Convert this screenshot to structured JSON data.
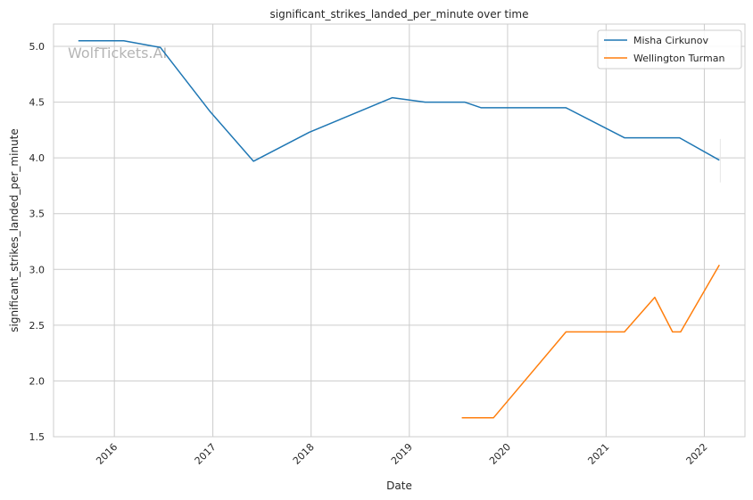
{
  "watermark": "WolfTickets.AI",
  "chart_data": {
    "type": "line",
    "title": "significant_strikes_landed_per_minute over time",
    "xlabel": "Date",
    "ylabel": "significant_strikes_landed_per_minute",
    "x_ticks": [
      "2016",
      "2017",
      "2018",
      "2019",
      "2020",
      "2021",
      "2022"
    ],
    "y_ticks": [
      "1.5",
      "2.0",
      "2.5",
      "3.0",
      "3.5",
      "4.0",
      "4.5",
      "5.0"
    ],
    "xlim": [
      "2015-05-20",
      "2022-06-01"
    ],
    "ylim": [
      1.5,
      5.2
    ],
    "grid": true,
    "legend_position": "top-right",
    "series": [
      {
        "name": "Misha Cirkunov",
        "color": "#1f77b4",
        "points": [
          [
            "2015-08-20",
            5.05
          ],
          [
            "2016-02-05",
            5.05
          ],
          [
            "2016-06-20",
            4.99
          ],
          [
            "2016-12-20",
            4.42
          ],
          [
            "2017-06-01",
            3.97
          ],
          [
            "2017-12-25",
            4.23
          ],
          [
            "2018-10-30",
            4.54
          ],
          [
            "2019-03-01",
            4.5
          ],
          [
            "2019-07-25",
            4.5
          ],
          [
            "2019-09-25",
            4.45
          ],
          [
            "2020-08-05",
            4.45
          ],
          [
            "2021-03-10",
            4.18
          ],
          [
            "2021-10-01",
            4.18
          ],
          [
            "2022-02-26",
            3.98
          ]
        ]
      },
      {
        "name": "Wellington Turman",
        "color": "#ff7f0e",
        "points": [
          [
            "2019-07-15",
            1.67
          ],
          [
            "2019-11-10",
            1.67
          ],
          [
            "2020-08-05",
            2.44
          ],
          [
            "2021-03-10",
            2.44
          ],
          [
            "2021-07-01",
            2.75
          ],
          [
            "2021-09-05",
            2.44
          ],
          [
            "2021-10-05",
            2.44
          ],
          [
            "2022-02-26",
            3.04
          ]
        ]
      }
    ]
  }
}
